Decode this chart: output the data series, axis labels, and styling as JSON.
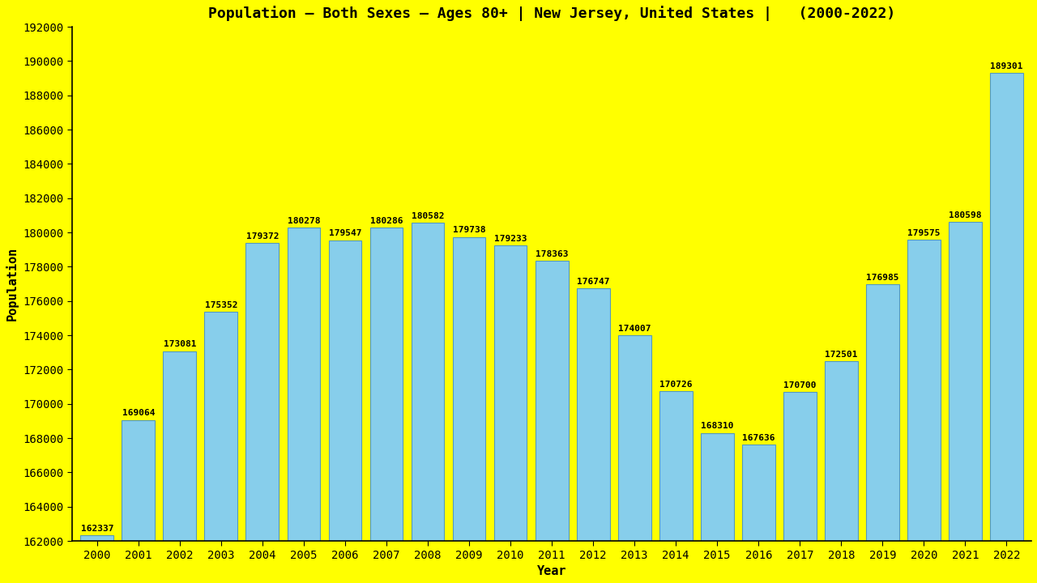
{
  "title": "Population – Both Sexes – Ages 80+ | New Jersey, United States |   (2000-2022)",
  "xlabel": "Year",
  "ylabel": "Population",
  "background_color": "#FFFF00",
  "bar_color": "#87CEEB",
  "bar_edge_color": "#5599BB",
  "years": [
    2000,
    2001,
    2002,
    2003,
    2004,
    2005,
    2006,
    2007,
    2008,
    2009,
    2010,
    2011,
    2012,
    2013,
    2014,
    2015,
    2016,
    2017,
    2018,
    2019,
    2020,
    2021,
    2022
  ],
  "values": [
    162337,
    169064,
    173081,
    175352,
    179372,
    180278,
    179547,
    180286,
    180582,
    179738,
    179233,
    178363,
    176747,
    174007,
    170726,
    168310,
    167636,
    170700,
    172501,
    176985,
    179575,
    180598,
    189301
  ],
  "ylim_min": 162000,
  "ylim_max": 192000,
  "ytick_step": 2000,
  "title_fontsize": 13,
  "axis_label_fontsize": 11,
  "tick_fontsize": 10,
  "bar_label_fontsize": 8
}
